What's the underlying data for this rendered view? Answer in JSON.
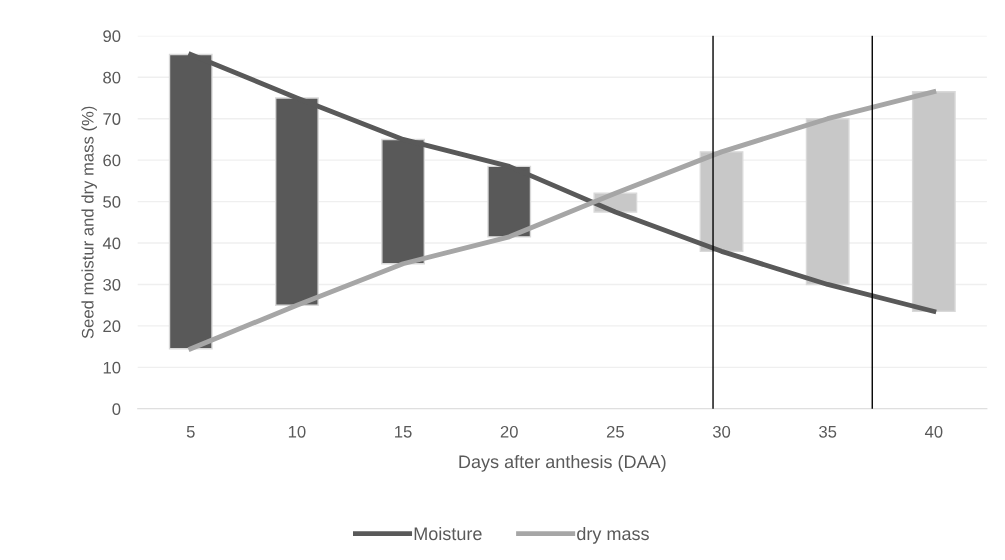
{
  "chart_data": {
    "type": "line",
    "xlabel": "Days after anthesis (DAA)",
    "ylabel": "Seed moistur and dry mass (%)",
    "x": [
      5,
      10,
      15,
      20,
      25,
      30,
      35,
      40
    ],
    "series": [
      {
        "type": "bar",
        "base": [
          14.5,
          25,
          35,
          41.5,
          47.5,
          38,
          30,
          23.5
        ],
        "values": [
          71,
          50,
          30,
          17,
          4.5,
          24,
          40,
          53
        ],
        "colors": [
          "#595959",
          "#595959",
          "#595959",
          "#595959",
          "#c8c8c8",
          "#c8c8c8",
          "#c8c8c8",
          "#c8c8c8"
        ]
      },
      {
        "name": "Moisture",
        "color": "#595959",
        "values": [
          85.5,
          75,
          65,
          58.5,
          47.5,
          38,
          30,
          23.5
        ]
      },
      {
        "name": "dry mass",
        "color": "#a6a6a6",
        "values": [
          14.5,
          25,
          35,
          41.5,
          52,
          62,
          70,
          76.5
        ]
      }
    ],
    "xlim": [
      2.5,
      42.5
    ],
    "xticks": [
      5,
      10,
      15,
      20,
      25,
      30,
      35,
      40
    ],
    "ylim": [
      0,
      90
    ],
    "yticks": [
      0,
      10,
      20,
      30,
      40,
      50,
      60,
      70,
      80,
      90
    ],
    "ref_lines": [
      {
        "axis": "x",
        "value": 29.6,
        "color": "#000000",
        "line_style": "solid"
      },
      {
        "axis": "x",
        "value": 37.1,
        "color": "#000000",
        "line_style": "solid"
      }
    ],
    "grid": "y",
    "legend": "bottom",
    "marker": "none",
    "line_style": "solid"
  }
}
